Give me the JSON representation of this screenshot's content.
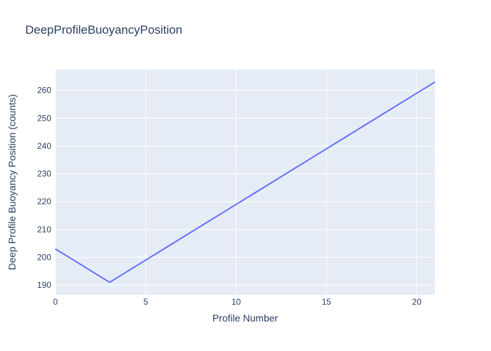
{
  "figure": {
    "title": "DeepProfileBuoyancyPosition"
  },
  "chart_data": {
    "type": "line",
    "title": "DeepProfileBuoyancyPosition",
    "xlabel": "Profile Number",
    "ylabel": "Deep Profile Buoyancy Position (counts)",
    "x": [
      0,
      1,
      2,
      3,
      4,
      5,
      6,
      7,
      8,
      9,
      10,
      11,
      12,
      13,
      14,
      15,
      16,
      17,
      18,
      19,
      20,
      21
    ],
    "y": [
      203,
      199,
      195,
      191,
      195,
      199,
      203,
      207,
      211,
      215,
      219,
      223,
      227,
      231,
      235,
      239,
      243,
      247,
      251,
      255,
      259,
      263
    ],
    "xlim": [
      0,
      21
    ],
    "ylim": [
      186.5,
      267.5
    ],
    "xticks": [
      0,
      5,
      10,
      15,
      20
    ],
    "yticks": [
      190,
      200,
      210,
      220,
      230,
      240,
      250,
      260
    ],
    "grid": true,
    "legend": false,
    "colors": {
      "line": "#636efa",
      "plot_background": "#e5ecf6",
      "grid": "#ffffff",
      "text": "#2a3f5f"
    }
  }
}
